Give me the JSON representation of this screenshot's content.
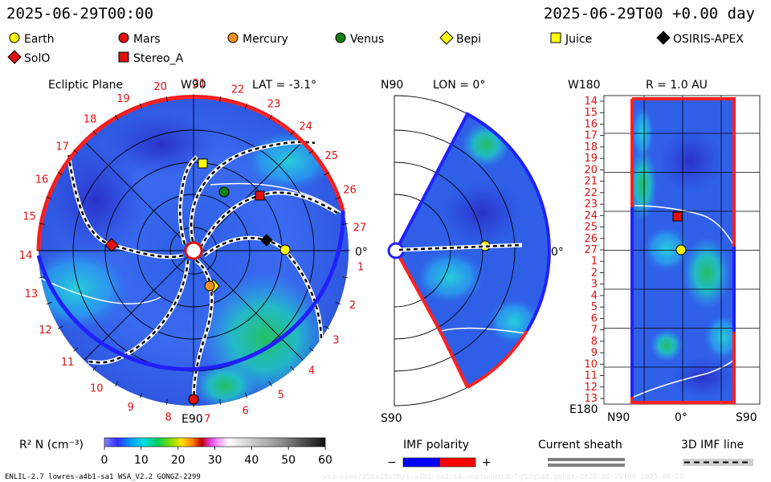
{
  "header": {
    "left_time": "2025-06-29T00:00",
    "right_time": "2025-06-29T00 +0.00 day"
  },
  "legend_objects": [
    {
      "label": "Earth",
      "shape": "circle",
      "color": "#ffff00"
    },
    {
      "label": "Mars",
      "shape": "circle",
      "color": "#e01010"
    },
    {
      "label": "Mercury",
      "shape": "circle",
      "color": "#f09020"
    },
    {
      "label": "Venus",
      "shape": "circle",
      "color": "#108010"
    },
    {
      "label": "Bepi",
      "shape": "diamond",
      "color": "#ffff00"
    },
    {
      "label": "Juice",
      "shape": "square",
      "color": "#ffff00"
    },
    {
      "label": "OSIRIS-APEX",
      "shape": "diamond",
      "color": "#000000"
    },
    {
      "label": "SolO",
      "shape": "diamond",
      "color": "#e01010"
    },
    {
      "label": "Stereo_A",
      "shape": "square",
      "color": "#e01010"
    }
  ],
  "ecliptic_panel": {
    "title": "Ecliptic Plane",
    "lat_label": "LAT = -3.1°",
    "top_label": "W90",
    "bottom_label": "E90",
    "right_label": "0°",
    "carrington_numbers": [
      "1",
      "2",
      "3",
      "4",
      "5",
      "6",
      "7",
      "8",
      "9",
      "10",
      "11",
      "12",
      "13",
      "14",
      "15",
      "16",
      "17",
      "18",
      "19",
      "20",
      "21",
      "22",
      "23",
      "24",
      "25",
      "26",
      "27"
    ]
  },
  "meridional_panel": {
    "title": "LON = 0°",
    "top_label": "N90",
    "bottom_label": "S90",
    "right_label": "0°"
  },
  "map_panel": {
    "title": "R = 1.0 AU",
    "top_label": "W180",
    "bottom_label": "E180",
    "x_labels": [
      "N90",
      "0°",
      "S90"
    ],
    "row_labels": [
      "14",
      "15",
      "16",
      "17",
      "18",
      "19",
      "20",
      "21",
      "22",
      "23",
      "24",
      "25",
      "26",
      "27",
      "1",
      "2",
      "3",
      "4",
      "5",
      "6",
      "7",
      "8",
      "9",
      "10",
      "11",
      "12",
      "13"
    ]
  },
  "colorbar": {
    "label": "R² N (cm⁻³)",
    "ticks": [
      "0",
      "10",
      "20",
      "30",
      "40",
      "50",
      "60"
    ]
  },
  "imf_polarity": {
    "title": "IMF polarity",
    "minus": "−",
    "plus": "+",
    "neg_color": "#0000ff",
    "pos_color": "#ff0000"
  },
  "current_sheath": {
    "title": "Current sheath"
  },
  "imf_line": {
    "title": "3D IMF line"
  },
  "footer": {
    "model_info": "ENLIL-2.7 lowres-a4b1-sa1 WSA_V2.2 GONGZ-2299",
    "watermark": "wsa-cone/256x30x90/1-a4b1-sa1.16-noptunnicd-lg53q5d2.gongz-2025-06-29T00   2025-06-29"
  }
}
